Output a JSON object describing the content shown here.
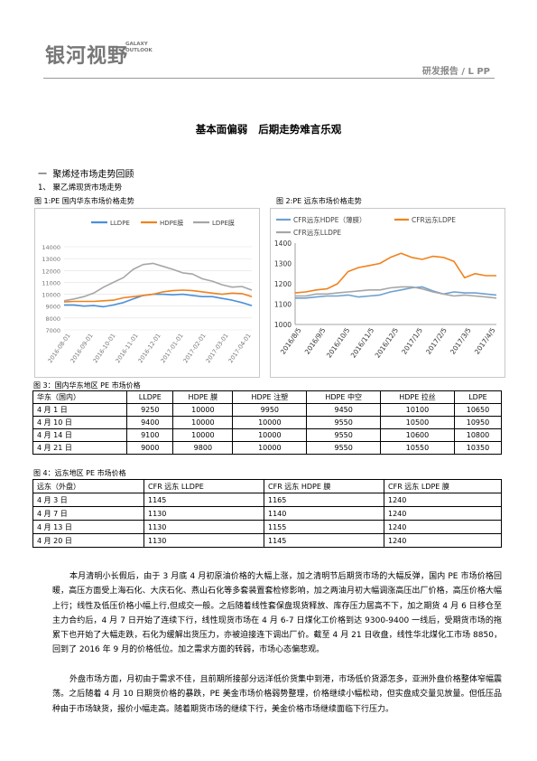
{
  "header": {
    "logo_cn": "银河视野",
    "logo_en_1": "GALAXY",
    "logo_en_2": "OUTLOOK",
    "report_label": "研发报告 / L PP"
  },
  "title": "基本面偏弱   后期走势难言乐观",
  "section": "一  聚烯烃市场走势回顾",
  "subsection": "1、 聚乙烯现货市场走势",
  "fig1_caption": "图 1:PE 国内华东市场价格走势",
  "fig2_caption": "图 2:PE 远东市场价格走势",
  "fig3_caption": "图 3：国内华东地区 PE 市场价格",
  "fig4_caption": "图 4：远东地区 PE 市场价格",
  "colors": {
    "ldpe": "#4a90d9",
    "hdpe_film": "#f0821e",
    "ldpe_film": "#a6a6a6",
    "cfr_hdpe_film": "#6fa0d0",
    "cfr_ldpe": "#f0821e",
    "cfr_lldpe": "#a6a6a6"
  },
  "chart_data": [
    {
      "type": "line",
      "legend": "top",
      "grid": true,
      "ylim": [
        7000,
        14000
      ],
      "yticks": [
        "14000",
        "13000",
        "12000",
        "11000",
        "10000",
        "9000",
        "8000",
        "7000"
      ],
      "xticks": [
        "2016-08-01",
        "2016-09-01",
        "2016-10-01",
        "2016-11-01",
        "2016-12-01",
        "2017-01-01",
        "2017-02-01",
        "2017-03-01",
        "2017-04-01"
      ],
      "series": [
        {
          "name": "LLDPE",
          "values": [
            9100,
            9100,
            9000,
            9050,
            8950,
            9100,
            9300,
            9600,
            9900,
            10000,
            10000,
            9950,
            10000,
            9900,
            9800,
            9800,
            9650,
            9500,
            9300,
            9050
          ]
        },
        {
          "name": "HDPE膜",
          "values": [
            9350,
            9400,
            9400,
            9400,
            9450,
            9500,
            9700,
            9800,
            9900,
            10000,
            10200,
            10300,
            10350,
            10300,
            10200,
            10100,
            10000,
            10100,
            10050,
            9800
          ]
        },
        {
          "name": "LDPE膜",
          "values": [
            9450,
            9600,
            9800,
            10100,
            10600,
            11000,
            11400,
            12100,
            12500,
            12600,
            12350,
            12100,
            11800,
            11700,
            11300,
            11100,
            10800,
            10600,
            10650,
            10350
          ]
        }
      ]
    },
    {
      "type": "line",
      "legend": "top",
      "grid": true,
      "ylim": [
        1000,
        1400
      ],
      "yticks": [
        "1400",
        "1300",
        "1200",
        "1100",
        "1000"
      ],
      "xticks": [
        "2016/8/5",
        "2016/9/5",
        "2016/10/5",
        "2016/11/5",
        "2016/12/5",
        "2017/1/5",
        "2017/2/5",
        "2017/3/5",
        "2017/4/5"
      ],
      "series": [
        {
          "name": "CFR远东HDPE（薄膜）",
          "values": [
            1130,
            1130,
            1135,
            1140,
            1140,
            1145,
            1135,
            1140,
            1145,
            1160,
            1170,
            1180,
            1185,
            1165,
            1150,
            1160,
            1155,
            1155,
            1150,
            1145
          ]
        },
        {
          "name": "CFR远东LDPE",
          "values": [
            1155,
            1160,
            1170,
            1175,
            1200,
            1260,
            1280,
            1290,
            1300,
            1330,
            1350,
            1330,
            1320,
            1335,
            1330,
            1310,
            1230,
            1250,
            1240,
            1240
          ]
        },
        {
          "name": "CFR远东LLDPE",
          "values": [
            1140,
            1140,
            1150,
            1150,
            1155,
            1160,
            1165,
            1170,
            1170,
            1180,
            1185,
            1185,
            1175,
            1160,
            1150,
            1140,
            1145,
            1140,
            1135,
            1130
          ]
        }
      ]
    }
  ],
  "table3": {
    "headers": [
      "华东（国内）",
      "LLDPE",
      "HDPE 膜",
      "HDPE 注塑",
      "HDPE 中空",
      "HDPE 拉丝",
      "LDPE"
    ],
    "rows": [
      [
        "4 月 1 日",
        "9250",
        "10000",
        "9950",
        "9450",
        "10100",
        "10650"
      ],
      [
        "4 月 10 日",
        "9400",
        "10000",
        "10000",
        "9550",
        "10500",
        "10950"
      ],
      [
        "4 月 14 日",
        "9100",
        "10000",
        "10000",
        "9550",
        "10600",
        "10800"
      ],
      [
        "4 月 21 日",
        "9000",
        "9800",
        "10000",
        "9550",
        "10550",
        "10350"
      ]
    ]
  },
  "table4": {
    "headers": [
      "远东（外盘）",
      "CFR 远东 LLDPE",
      "CFR  远东 HDPE 膜",
      "CFR  远东  LDPE 膜"
    ],
    "rows": [
      [
        "4 月 3 日",
        "1145",
        "1165",
        "1240"
      ],
      [
        "4 月 7 日",
        "1130",
        "1140",
        "1240"
      ],
      [
        "4 月 13 日",
        "1130",
        "1155",
        "1240"
      ],
      [
        "4 月 20 日",
        "1130",
        "1145",
        "1240"
      ]
    ]
  },
  "paragraphs": [
    "本月清明小长假后，由于 3 月底 4 月初原油价格的大幅上涨，加之清明节后期货市场的大幅反弹，国内 PE 市场价格回暖，高压方面受上海石化、大庆石化、燕山石化等多套装置套检修影响，加之两油月初大幅调涨高压出厂价格，高压价格大幅上行；线性及低压价格小幅上行,但成交一般。之后随着线性套保盘现货释放、库存压力居高不下，加之期货 4 月 6 日移仓至主力合约后，4 月 7 日开始了连续下行，线性现货市场在 4 月 6-7 日煤化工价格到达 9300-9400 一线后，受期货市场的拖累下也开始了大幅走跌，石化为缓解出货压力，亦被迫接连下调出厂价。截至 4 月 21 日收盘，线性华北煤化工市场 8850，回到了 2016 年 9 月的价格低位。加之需求方面的转弱，市场心态偏悲观。",
    "外盘市场方面，月初由于需求不佳，且前期所接部分远洋低价货集中到港，市场低价货源怎多，亚洲外盘价格整体窄幅震荡。之后随着 4 月 10 日期货价格的暴跌，PE 美金市场价格弱势整理，价格继续小幅松动，但实盘成交量见放量。但低压品种由于市场缺货，报价小幅走高。随着期货市场的继续下行，美金价格市场继续面临下行压力。"
  ]
}
